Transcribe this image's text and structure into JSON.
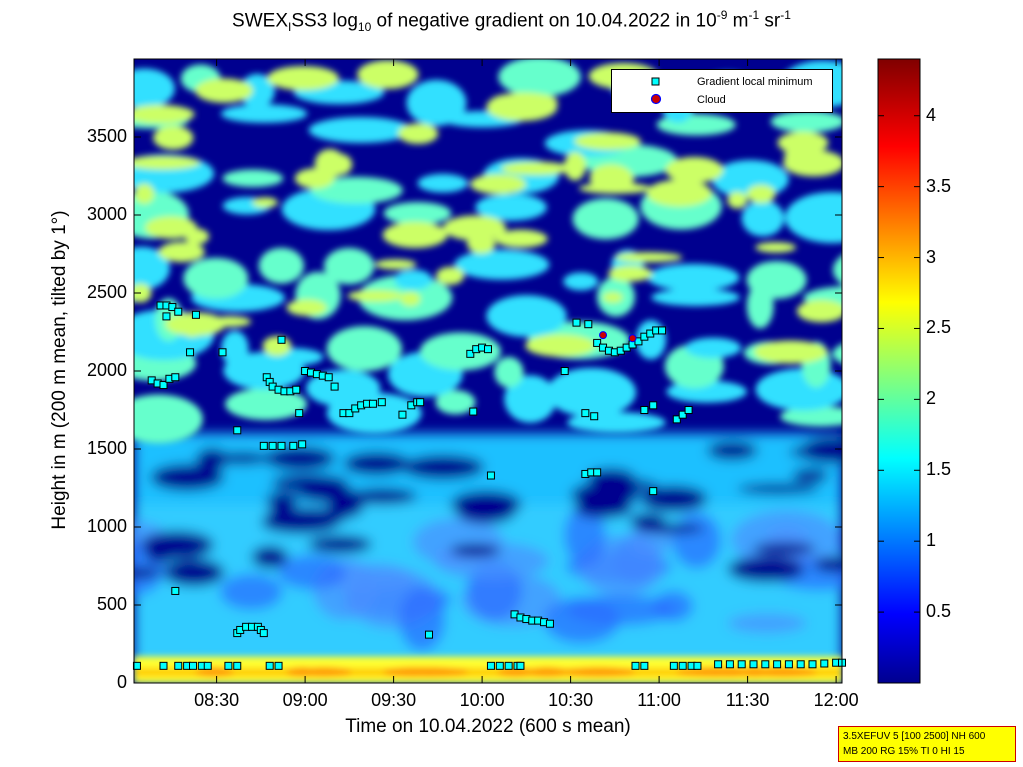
{
  "title": {
    "p1": "SWEX",
    "sub1": "I",
    "p2": "SS3 log",
    "sub2": "10",
    "p3": " of negative gradient on 10.04.2022 in 10",
    "sup1": "-9",
    "p4": " m",
    "sup2": "-1",
    "p5": " sr",
    "sup3": "-1"
  },
  "infobox": {
    "line1": "3.5XEFUV 5 [100 2500] NH 600",
    "line2": "MB 200 RG 15% TI 0 HI 15"
  },
  "colors": {
    "background_low": "#00008f",
    "marker_min": "#00ffff",
    "marker_cloud": "#cc0000"
  },
  "chart_data": {
    "type": "heatmap",
    "xlabel": "Time on 10.04.2022 (600 s mean)",
    "ylabel": "Height in m (200 m mean, tilted by 1°)",
    "x_range": [
      "08:02",
      "12:02"
    ],
    "ylim": [
      0,
      4000
    ],
    "x_ticks": [
      "08:30",
      "09:00",
      "09:30",
      "10:00",
      "10:30",
      "11:00",
      "11:30",
      "12:00"
    ],
    "y_ticks": [
      0,
      500,
      1000,
      1500,
      2000,
      2500,
      3000,
      3500
    ],
    "colorbar": {
      "range": [
        0,
        4.4
      ],
      "ticks": [
        0.5,
        1,
        1.5,
        2,
        2.5,
        3,
        3.5,
        4
      ],
      "colormap": "jet"
    },
    "legend": {
      "placement": "top-right",
      "entries": [
        {
          "label": "Gradient local minimum",
          "marker": "square",
          "color": "#00ffff"
        },
        {
          "label": "Cloud",
          "marker": "circle",
          "color": "#cc0000"
        }
      ]
    },
    "series": [
      {
        "name": "Gradient local minimum",
        "points": [
          [
            "08:03",
            110
          ],
          [
            "08:12",
            110
          ],
          [
            "08:17",
            110
          ],
          [
            "08:20",
            110
          ],
          [
            "08:22",
            110
          ],
          [
            "08:25",
            110
          ],
          [
            "08:27",
            110
          ],
          [
            "08:34",
            110
          ],
          [
            "08:37",
            110
          ],
          [
            "08:48",
            110
          ],
          [
            "08:51",
            110
          ],
          [
            "10:03",
            110
          ],
          [
            "10:06",
            110
          ],
          [
            "10:09",
            110
          ],
          [
            "10:12",
            110
          ],
          [
            "10:13",
            110
          ],
          [
            "10:52",
            110
          ],
          [
            "10:55",
            110
          ],
          [
            "11:05",
            110
          ],
          [
            "11:08",
            110
          ],
          [
            "11:11",
            110
          ],
          [
            "11:13",
            110
          ],
          [
            "11:20",
            120
          ],
          [
            "11:24",
            120
          ],
          [
            "11:28",
            120
          ],
          [
            "11:32",
            120
          ],
          [
            "11:36",
            120
          ],
          [
            "11:40",
            120
          ],
          [
            "11:44",
            120
          ],
          [
            "11:48",
            120
          ],
          [
            "11:52",
            120
          ],
          [
            "11:56",
            125
          ],
          [
            "12:00",
            130
          ],
          [
            "12:02",
            130
          ],
          [
            "08:16",
            590
          ],
          [
            "08:37",
            320
          ],
          [
            "08:38",
            340
          ],
          [
            "08:40",
            360
          ],
          [
            "08:42",
            360
          ],
          [
            "08:44",
            360
          ],
          [
            "08:45",
            340
          ],
          [
            "08:46",
            320
          ],
          [
            "09:42",
            310
          ],
          [
            "10:11",
            440
          ],
          [
            "10:13",
            420
          ],
          [
            "10:15",
            410
          ],
          [
            "10:17",
            400
          ],
          [
            "10:19",
            400
          ],
          [
            "10:21",
            390
          ],
          [
            "10:23",
            380
          ],
          [
            "08:11",
            2420
          ],
          [
            "08:13",
            2420
          ],
          [
            "08:15",
            2410
          ],
          [
            "08:17",
            2380
          ],
          [
            "08:13",
            2350
          ],
          [
            "08:23",
            2360
          ],
          [
            "08:08",
            1940
          ],
          [
            "08:10",
            1920
          ],
          [
            "08:12",
            1910
          ],
          [
            "08:14",
            1950
          ],
          [
            "08:16",
            1960
          ],
          [
            "08:21",
            2120
          ],
          [
            "08:32",
            2120
          ],
          [
            "08:52",
            2200
          ],
          [
            "08:47",
            1960
          ],
          [
            "08:48",
            1930
          ],
          [
            "08:49",
            1900
          ],
          [
            "08:51",
            1880
          ],
          [
            "08:53",
            1870
          ],
          [
            "08:55",
            1870
          ],
          [
            "08:57",
            1880
          ],
          [
            "08:58",
            1730
          ],
          [
            "08:37",
            1620
          ],
          [
            "08:46",
            1520
          ],
          [
            "08:49",
            1520
          ],
          [
            "08:52",
            1520
          ],
          [
            "08:56",
            1520
          ],
          [
            "08:59",
            1530
          ],
          [
            "09:00",
            2000
          ],
          [
            "09:02",
            1990
          ],
          [
            "09:04",
            1980
          ],
          [
            "09:06",
            1970
          ],
          [
            "09:08",
            1960
          ],
          [
            "09:10",
            1900
          ],
          [
            "09:13",
            1730
          ],
          [
            "09:15",
            1730
          ],
          [
            "09:17",
            1760
          ],
          [
            "09:19",
            1780
          ],
          [
            "09:21",
            1790
          ],
          [
            "09:23",
            1790
          ],
          [
            "09:26",
            1800
          ],
          [
            "09:33",
            1720
          ],
          [
            "09:36",
            1780
          ],
          [
            "09:38",
            1800
          ],
          [
            "09:39",
            1800
          ],
          [
            "09:56",
            2110
          ],
          [
            "09:58",
            2140
          ],
          [
            "10:00",
            2150
          ],
          [
            "10:02",
            2140
          ],
          [
            "09:57",
            1740
          ],
          [
            "10:03",
            1330
          ],
          [
            "10:28",
            2000
          ],
          [
            "10:32",
            2310
          ],
          [
            "10:36",
            2300
          ],
          [
            "10:35",
            1730
          ],
          [
            "10:38",
            1710
          ],
          [
            "10:35",
            1340
          ],
          [
            "10:37",
            1350
          ],
          [
            "10:39",
            1350
          ],
          [
            "10:39",
            2180
          ],
          [
            "10:41",
            2150
          ],
          [
            "10:43",
            2130
          ],
          [
            "10:45",
            2120
          ],
          [
            "10:47",
            2130
          ],
          [
            "10:49",
            2150
          ],
          [
            "10:51",
            2170
          ],
          [
            "10:53",
            2190
          ],
          [
            "10:55",
            2220
          ],
          [
            "10:57",
            2240
          ],
          [
            "10:59",
            2260
          ],
          [
            "11:01",
            2260
          ],
          [
            "10:55",
            1750
          ],
          [
            "10:58",
            1780
          ],
          [
            "10:58",
            1230
          ],
          [
            "11:06",
            1690
          ],
          [
            "11:08",
            1720
          ],
          [
            "11:10",
            1750
          ]
        ]
      },
      {
        "name": "Cloud",
        "points": [
          [
            "10:41",
            2230
          ],
          [
            "10:51",
            2210
          ]
        ]
      }
    ]
  }
}
